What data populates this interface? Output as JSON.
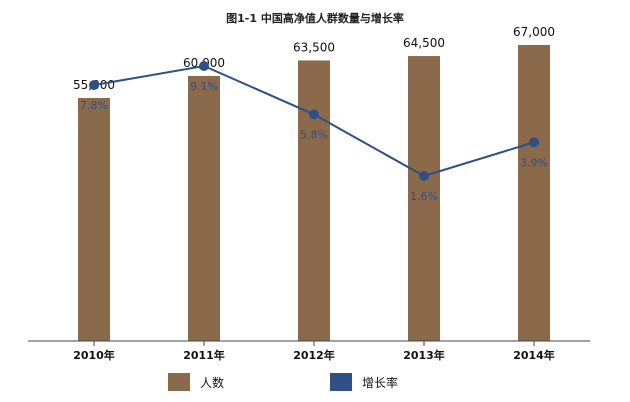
{
  "chart_data": {
    "type": "bar",
    "title": "图1-1 中国高净值人群数量与增长率",
    "categories": [
      "2010年",
      "2011年",
      "2012年",
      "2013年",
      "2014年"
    ],
    "series": [
      {
        "name": "人数",
        "type": "bar",
        "values": [
          55000,
          60000,
          63500,
          64500,
          67000
        ],
        "labels": [
          "55,000",
          "60,000",
          "63,500",
          "64,500",
          "67,000"
        ],
        "color": "#8b6a4b"
      },
      {
        "name": "增长率",
        "type": "line",
        "values": [
          7.8,
          9.1,
          5.8,
          1.6,
          3.9
        ],
        "labels": [
          "7.8%",
          "9.1%",
          "5.8%",
          "1.6%",
          "3.9%"
        ],
        "color": "#2f4f86"
      }
    ],
    "legend": "bottom",
    "grid": false
  }
}
